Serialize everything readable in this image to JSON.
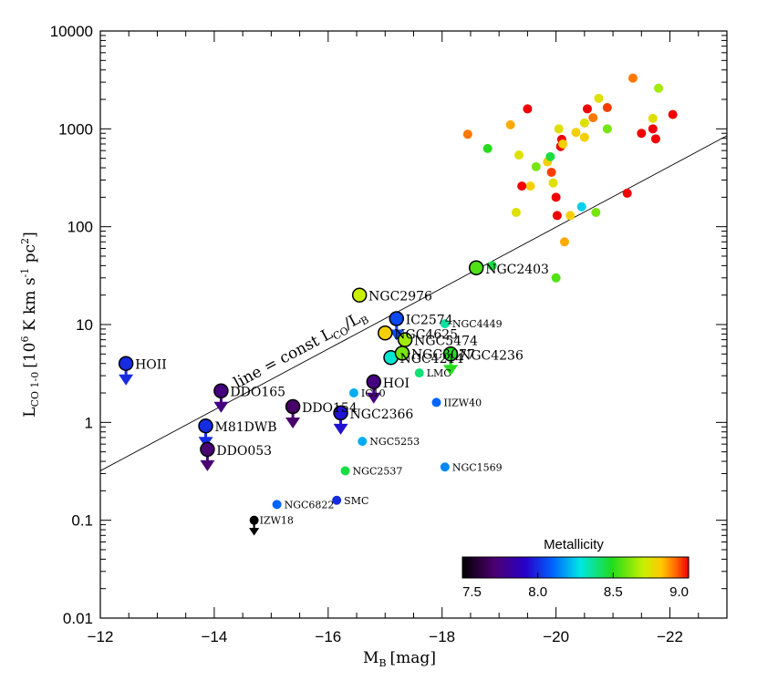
{
  "chart_data": {
    "type": "scatter",
    "title": "",
    "xlabel_main": "M",
    "xlabel_sub": "B",
    "xlabel_unit": "[mag]",
    "ylabel_main": "L",
    "ylabel_sub": "CO 1-0",
    "ylabel_unit_pre": "[10",
    "ylabel_unit_exp": "6",
    "ylabel_unit_mid": " K km s",
    "ylabel_unit_exp2": "-1",
    "ylabel_unit_mid2": " pc",
    "ylabel_unit_exp3": "2",
    "ylabel_unit_post": "]",
    "xlim": [
      -12,
      -23
    ],
    "ylim": [
      0.01,
      10000
    ],
    "yscale": "log",
    "x_ticks": [
      -12,
      -14,
      -16,
      -18,
      -20,
      -22
    ],
    "x_tick_labels": [
      "−12",
      "−14",
      "−16",
      "−18",
      "−20",
      "−22"
    ],
    "y_ticks": [
      0.01,
      0.1,
      1,
      10,
      100,
      1000,
      10000
    ],
    "y_tick_labels": [
      "0.01",
      "0.1",
      "1",
      "10",
      "100",
      "1000",
      "10000"
    ],
    "line": {
      "label_pre": "line = const L",
      "label_sub1": "CO",
      "label_mid": "/L",
      "label_sub2": "B",
      "x": [
        -12,
        -23
      ],
      "y": [
        0.32,
        850
      ]
    },
    "colorbar": {
      "title": "Metallicity",
      "range": [
        7.5,
        9.0
      ],
      "tick_labels": [
        "7.5",
        "8.0",
        "8.5",
        "9.0"
      ]
    },
    "labeled_points": [
      {
        "name": "HOII",
        "x": -12.45,
        "y": 4.0,
        "z": 8.0,
        "upper_limit": true,
        "big": true
      },
      {
        "name": "DDO165",
        "x": -14.12,
        "y": 2.1,
        "z": 7.75,
        "upper_limit": true,
        "big": true
      },
      {
        "name": "M81DWB",
        "x": -13.85,
        "y": 0.92,
        "z": 8.0,
        "upper_limit": true,
        "big": true
      },
      {
        "name": "DDO053",
        "x": -13.88,
        "y": 0.53,
        "z": 7.72,
        "upper_limit": true,
        "big": true
      },
      {
        "name": "DDO154",
        "x": -15.38,
        "y": 1.45,
        "z": 7.7,
        "upper_limit": true,
        "big": true
      },
      {
        "name": "NGC2366",
        "x": -16.22,
        "y": 1.25,
        "z": 7.95,
        "upper_limit": true,
        "big": true
      },
      {
        "name": "HOI",
        "x": -16.8,
        "y": 2.6,
        "z": 7.75,
        "upper_limit": true,
        "big": true
      },
      {
        "name": "NGC2976",
        "x": -16.55,
        "y": 20,
        "z": 8.7,
        "upper_limit": false,
        "big": true
      },
      {
        "name": "IC2574",
        "x": -17.2,
        "y": 11.5,
        "z": 8.05,
        "upper_limit": true,
        "big": true
      },
      {
        "name": "NGC4625",
        "x": -17.0,
        "y": 8.2,
        "z": 8.8,
        "upper_limit": false,
        "big": true
      },
      {
        "name": "NGC5474",
        "x": -17.35,
        "y": 7.0,
        "z": 8.65,
        "upper_limit": false,
        "big": true
      },
      {
        "name": "NGC4214",
        "x": -17.1,
        "y": 4.6,
        "z": 8.3,
        "upper_limit": false,
        "big": true
      },
      {
        "name": "NGC3077",
        "x": -17.3,
        "y": 5.1,
        "z": 8.6,
        "upper_limit": false,
        "big": true
      },
      {
        "name": "NGC4236",
        "x": -18.15,
        "y": 5.0,
        "z": 8.5,
        "upper_limit": true,
        "big": true
      },
      {
        "name": "NGC2403",
        "x": -18.6,
        "y": 38,
        "z": 8.55,
        "upper_limit": false,
        "big": true
      },
      {
        "name": "NGC4449",
        "x": -18.05,
        "y": 10.2,
        "z": 8.35,
        "upper_limit": false,
        "big": false
      },
      {
        "name": "LMC",
        "x": -17.6,
        "y": 3.2,
        "z": 8.4,
        "upper_limit": false,
        "big": false
      },
      {
        "name": "IC10",
        "x": -16.45,
        "y": 2.0,
        "z": 8.2,
        "upper_limit": false,
        "big": false
      },
      {
        "name": "IIZW40",
        "x": -17.9,
        "y": 1.6,
        "z": 8.1,
        "upper_limit": false,
        "big": false
      },
      {
        "name": "NGC5253",
        "x": -16.6,
        "y": 0.64,
        "z": 8.2,
        "upper_limit": false,
        "big": false
      },
      {
        "name": "NGC1569",
        "x": -18.05,
        "y": 0.35,
        "z": 8.15,
        "upper_limit": false,
        "big": false
      },
      {
        "name": "NGC2537",
        "x": -16.3,
        "y": 0.32,
        "z": 8.45,
        "upper_limit": false,
        "big": false
      },
      {
        "name": "NGC6822",
        "x": -15.1,
        "y": 0.145,
        "z": 8.1,
        "upper_limit": false,
        "big": false
      },
      {
        "name": "SMC",
        "x": -16.15,
        "y": 0.16,
        "z": 8.0,
        "upper_limit": false,
        "big": false
      },
      {
        "name": "IZW18",
        "x": -14.7,
        "y": 0.1,
        "z": 7.2,
        "upper_limit": true,
        "big": false
      }
    ],
    "points": [
      {
        "x": -18.45,
        "y": 880,
        "z": 8.9
      },
      {
        "x": -18.8,
        "y": 630,
        "z": 8.5
      },
      {
        "x": -18.88,
        "y": 40,
        "z": 8.45
      },
      {
        "x": -19.2,
        "y": 1100,
        "z": 8.85
      },
      {
        "x": -19.35,
        "y": 540,
        "z": 8.75
      },
      {
        "x": -19.3,
        "y": 140,
        "z": 8.75
      },
      {
        "x": -19.5,
        "y": 1600,
        "z": 9.05
      },
      {
        "x": -19.55,
        "y": 260,
        "z": 8.8
      },
      {
        "x": -19.4,
        "y": 260,
        "z": 9.0
      },
      {
        "x": -19.65,
        "y": 410,
        "z": 8.6
      },
      {
        "x": -19.85,
        "y": 460,
        "z": 8.8
      },
      {
        "x": -19.9,
        "y": 520,
        "z": 8.45
      },
      {
        "x": -19.92,
        "y": 360,
        "z": 8.95
      },
      {
        "x": -19.95,
        "y": 280,
        "z": 8.75
      },
      {
        "x": -20.0,
        "y": 200,
        "z": 9.0
      },
      {
        "x": -20.02,
        "y": 130,
        "z": 9.0
      },
      {
        "x": -20.05,
        "y": 1000,
        "z": 8.75
      },
      {
        "x": -20.1,
        "y": 780,
        "z": 9.0
      },
      {
        "x": -20.08,
        "y": 660,
        "z": 9.05
      },
      {
        "x": -20.12,
        "y": 700,
        "z": 8.8
      },
      {
        "x": -20.0,
        "y": 30,
        "z": 8.55
      },
      {
        "x": -20.15,
        "y": 70,
        "z": 8.85
      },
      {
        "x": -20.25,
        "y": 130,
        "z": 8.8
      },
      {
        "x": -20.35,
        "y": 920,
        "z": 8.8
      },
      {
        "x": -20.5,
        "y": 1150,
        "z": 8.75
      },
      {
        "x": -20.5,
        "y": 820,
        "z": 8.8
      },
      {
        "x": -20.45,
        "y": 160,
        "z": 8.25
      },
      {
        "x": -20.55,
        "y": 1600,
        "z": 9.0
      },
      {
        "x": -20.65,
        "y": 1300,
        "z": 8.9
      },
      {
        "x": -20.7,
        "y": 140,
        "z": 8.6
      },
      {
        "x": -20.75,
        "y": 2050,
        "z": 8.75
      },
      {
        "x": -20.9,
        "y": 1000,
        "z": 8.6
      },
      {
        "x": -20.9,
        "y": 1650,
        "z": 8.95
      },
      {
        "x": -21.25,
        "y": 220,
        "z": 9.0
      },
      {
        "x": -21.35,
        "y": 3300,
        "z": 8.9
      },
      {
        "x": -21.5,
        "y": 900,
        "z": 9.05
      },
      {
        "x": -21.7,
        "y": 1280,
        "z": 8.75
      },
      {
        "x": -21.7,
        "y": 1000,
        "z": 9.05
      },
      {
        "x": -21.75,
        "y": 790,
        "z": 9.05
      },
      {
        "x": -21.8,
        "y": 2600,
        "z": 8.65
      },
      {
        "x": -22.05,
        "y": 1400,
        "z": 9.05
      }
    ]
  }
}
